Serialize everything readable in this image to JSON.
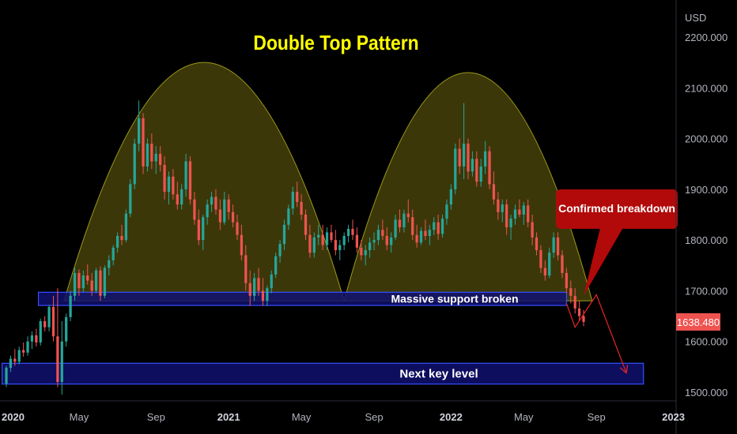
{
  "chart_data": {
    "type": "candlestick",
    "title": "Double Top Pattern",
    "currency_label": "USD",
    "ylim": [
      1490,
      2240
    ],
    "y_ticks": [
      "1500.000",
      "1600.000",
      "1700.000",
      "1800.000",
      "1900.000",
      "2000.000",
      "2100.000",
      "2200.000"
    ],
    "x_ticks": [
      {
        "label": "2020",
        "t": 0,
        "bold": true
      },
      {
        "label": "May",
        "t": 17,
        "bold": false
      },
      {
        "label": "Sep",
        "t": 35,
        "bold": false
      },
      {
        "label": "2021",
        "t": 52,
        "bold": true
      },
      {
        "label": "May",
        "t": 69,
        "bold": false
      },
      {
        "label": "Sep",
        "t": 86,
        "bold": false
      },
      {
        "label": "2022",
        "t": 104,
        "bold": true
      },
      {
        "label": "May",
        "t": 121,
        "bold": false
      },
      {
        "label": "Sep",
        "t": 138,
        "bold": false
      },
      {
        "label": "2023",
        "t": 156,
        "bold": true
      }
    ],
    "weeks_range": [
      0,
      156
    ],
    "last_price": "1638.480",
    "candles": [
      [
        1517,
        1552,
        1510,
        1548
      ],
      [
        1548,
        1572,
        1540,
        1566
      ],
      [
        1566,
        1585,
        1552,
        1560
      ],
      [
        1560,
        1590,
        1555,
        1583
      ],
      [
        1583,
        1598,
        1570,
        1578
      ],
      [
        1578,
        1610,
        1572,
        1600
      ],
      [
        1600,
        1620,
        1585,
        1612
      ],
      [
        1612,
        1625,
        1590,
        1598
      ],
      [
        1598,
        1645,
        1592,
        1640
      ],
      [
        1640,
        1650,
        1620,
        1628
      ],
      [
        1628,
        1672,
        1620,
        1668
      ],
      [
        1668,
        1690,
        1600,
        1610
      ],
      [
        1610,
        1705,
        1510,
        1520
      ],
      [
        1520,
        1640,
        1495,
        1600
      ],
      [
        1600,
        1655,
        1590,
        1648
      ],
      [
        1648,
        1700,
        1640,
        1690
      ],
      [
        1690,
        1745,
        1680,
        1735
      ],
      [
        1735,
        1742,
        1690,
        1705
      ],
      [
        1705,
        1740,
        1698,
        1730
      ],
      [
        1730,
        1752,
        1712,
        1720
      ],
      [
        1720,
        1735,
        1690,
        1700
      ],
      [
        1700,
        1745,
        1695,
        1740
      ],
      [
        1740,
        1748,
        1680,
        1690
      ],
      [
        1690,
        1750,
        1685,
        1745
      ],
      [
        1745,
        1770,
        1730,
        1760
      ],
      [
        1760,
        1790,
        1750,
        1785
      ],
      [
        1785,
        1815,
        1775,
        1808
      ],
      [
        1808,
        1830,
        1790,
        1800
      ],
      [
        1800,
        1860,
        1795,
        1852
      ],
      [
        1852,
        1920,
        1845,
        1910
      ],
      [
        1910,
        2000,
        1900,
        1990
      ],
      [
        1990,
        2075,
        1975,
        2040
      ],
      [
        2040,
        2050,
        1930,
        1945
      ],
      [
        1945,
        2000,
        1935,
        1990
      ],
      [
        1990,
        2010,
        1940,
        1955
      ],
      [
        1955,
        1985,
        1930,
        1970
      ],
      [
        1970,
        1985,
        1935,
        1948
      ],
      [
        1948,
        1965,
        1880,
        1895
      ],
      [
        1895,
        1935,
        1870,
        1925
      ],
      [
        1925,
        1940,
        1880,
        1890
      ],
      [
        1890,
        1915,
        1860,
        1870
      ],
      [
        1870,
        1910,
        1860,
        1900
      ],
      [
        1900,
        1970,
        1885,
        1955
      ],
      [
        1955,
        1965,
        1870,
        1880
      ],
      [
        1880,
        1895,
        1830,
        1840
      ],
      [
        1840,
        1860,
        1790,
        1800
      ],
      [
        1800,
        1850,
        1780,
        1845
      ],
      [
        1845,
        1880,
        1830,
        1870
      ],
      [
        1870,
        1895,
        1855,
        1885
      ],
      [
        1885,
        1900,
        1850,
        1860
      ],
      [
        1860,
        1880,
        1820,
        1835
      ],
      [
        1835,
        1895,
        1830,
        1880
      ],
      [
        1880,
        1890,
        1840,
        1855
      ],
      [
        1855,
        1870,
        1825,
        1835
      ],
      [
        1835,
        1850,
        1800,
        1810
      ],
      [
        1810,
        1830,
        1760,
        1770
      ],
      [
        1770,
        1790,
        1700,
        1715
      ],
      [
        1715,
        1740,
        1670,
        1690
      ],
      [
        1690,
        1735,
        1680,
        1725
      ],
      [
        1725,
        1745,
        1690,
        1700
      ],
      [
        1700,
        1725,
        1670,
        1680
      ],
      [
        1680,
        1710,
        1670,
        1705
      ],
      [
        1705,
        1740,
        1695,
        1732
      ],
      [
        1732,
        1775,
        1725,
        1768
      ],
      [
        1768,
        1800,
        1755,
        1792
      ],
      [
        1792,
        1840,
        1780,
        1830
      ],
      [
        1830,
        1870,
        1820,
        1862
      ],
      [
        1862,
        1905,
        1850,
        1895
      ],
      [
        1895,
        1915,
        1865,
        1875
      ],
      [
        1875,
        1890,
        1840,
        1850
      ],
      [
        1850,
        1860,
        1800,
        1810
      ],
      [
        1810,
        1830,
        1765,
        1775
      ],
      [
        1775,
        1815,
        1765,
        1805
      ],
      [
        1805,
        1830,
        1790,
        1810
      ],
      [
        1810,
        1830,
        1780,
        1790
      ],
      [
        1790,
        1825,
        1780,
        1815
      ],
      [
        1815,
        1830,
        1795,
        1800
      ],
      [
        1800,
        1820,
        1770,
        1780
      ],
      [
        1780,
        1800,
        1760,
        1790
      ],
      [
        1790,
        1815,
        1780,
        1808
      ],
      [
        1808,
        1830,
        1795,
        1822
      ],
      [
        1822,
        1840,
        1800,
        1810
      ],
      [
        1810,
        1825,
        1775,
        1785
      ],
      [
        1785,
        1800,
        1760,
        1770
      ],
      [
        1770,
        1790,
        1750,
        1780
      ],
      [
        1780,
        1805,
        1765,
        1795
      ],
      [
        1795,
        1815,
        1780,
        1800
      ],
      [
        1800,
        1830,
        1790,
        1820
      ],
      [
        1820,
        1840,
        1800,
        1808
      ],
      [
        1808,
        1825,
        1780,
        1790
      ],
      [
        1790,
        1815,
        1775,
        1805
      ],
      [
        1805,
        1850,
        1800,
        1840
      ],
      [
        1840,
        1860,
        1815,
        1825
      ],
      [
        1825,
        1860,
        1815,
        1852
      ],
      [
        1852,
        1880,
        1835,
        1845
      ],
      [
        1845,
        1860,
        1800,
        1810
      ],
      [
        1810,
        1830,
        1785,
        1795
      ],
      [
        1795,
        1825,
        1790,
        1818
      ],
      [
        1818,
        1840,
        1800,
        1808
      ],
      [
        1808,
        1830,
        1790,
        1820
      ],
      [
        1820,
        1845,
        1810,
        1835
      ],
      [
        1835,
        1850,
        1800,
        1812
      ],
      [
        1812,
        1850,
        1805,
        1842
      ],
      [
        1842,
        1880,
        1830,
        1870
      ],
      [
        1870,
        1910,
        1860,
        1900
      ],
      [
        1900,
        1990,
        1890,
        1980
      ],
      [
        1980,
        2000,
        1930,
        1945
      ],
      [
        1945,
        2070,
        1920,
        1990
      ],
      [
        1990,
        2000,
        1920,
        1935
      ],
      [
        1935,
        1975,
        1925,
        1960
      ],
      [
        1960,
        1975,
        1905,
        1915
      ],
      [
        1915,
        1960,
        1905,
        1945
      ],
      [
        1945,
        1995,
        1930,
        1975
      ],
      [
        1975,
        1985,
        1900,
        1910
      ],
      [
        1910,
        1935,
        1870,
        1880
      ],
      [
        1880,
        1895,
        1840,
        1855
      ],
      [
        1855,
        1880,
        1835,
        1870
      ],
      [
        1870,
        1880,
        1810,
        1825
      ],
      [
        1825,
        1850,
        1800,
        1842
      ],
      [
        1842,
        1870,
        1830,
        1860
      ],
      [
        1860,
        1880,
        1845,
        1850
      ],
      [
        1850,
        1875,
        1830,
        1868
      ],
      [
        1868,
        1880,
        1825,
        1835
      ],
      [
        1835,
        1850,
        1790,
        1805
      ],
      [
        1805,
        1815,
        1770,
        1780
      ],
      [
        1780,
        1790,
        1735,
        1745
      ],
      [
        1745,
        1760,
        1720,
        1730
      ],
      [
        1730,
        1785,
        1725,
        1775
      ],
      [
        1775,
        1815,
        1765,
        1805
      ],
      [
        1805,
        1815,
        1760,
        1770
      ],
      [
        1770,
        1780,
        1725,
        1735
      ],
      [
        1735,
        1745,
        1695,
        1705
      ],
      [
        1705,
        1720,
        1675,
        1690
      ],
      [
        1690,
        1705,
        1655,
        1665
      ],
      [
        1665,
        1680,
        1640,
        1650
      ],
      [
        1650,
        1662,
        1630,
        1638.48
      ]
    ],
    "zones": [
      {
        "label": "Massive support broken",
        "t_start": 7.5,
        "t_end": 131,
        "y_top": 1697,
        "y_bottom": 1671
      },
      {
        "label": "Next key level",
        "t_start": -1,
        "t_end": 149,
        "y_top": 1557,
        "y_bottom": 1516
      }
    ],
    "arcs": [
      {
        "t_start": 13.5,
        "t_end": 79,
        "peak": 2150
      },
      {
        "t_start": 79,
        "t_end": 137,
        "peak": 2130
      }
    ],
    "annotation": {
      "label": "Confirmed breakdown",
      "t": 135,
      "y": 1690
    },
    "projection": [
      [
        131,
        1675
      ],
      [
        133,
        1628
      ],
      [
        138,
        1692
      ],
      [
        145,
        1538
      ]
    ],
    "colors": {
      "up": "#26a69a",
      "down": "#ef5350",
      "background": "#000000",
      "title": "#ffff00",
      "zone_fill": "#101070",
      "zone_stroke": "#3350ff",
      "arc_fill": "#3f3a0a",
      "arc_stroke": "#9a9a1a",
      "callout": "#b20a0a",
      "projection": "#dd2222",
      "axis_text": "#b2b5be",
      "price_badge": "#ef5350"
    }
  }
}
